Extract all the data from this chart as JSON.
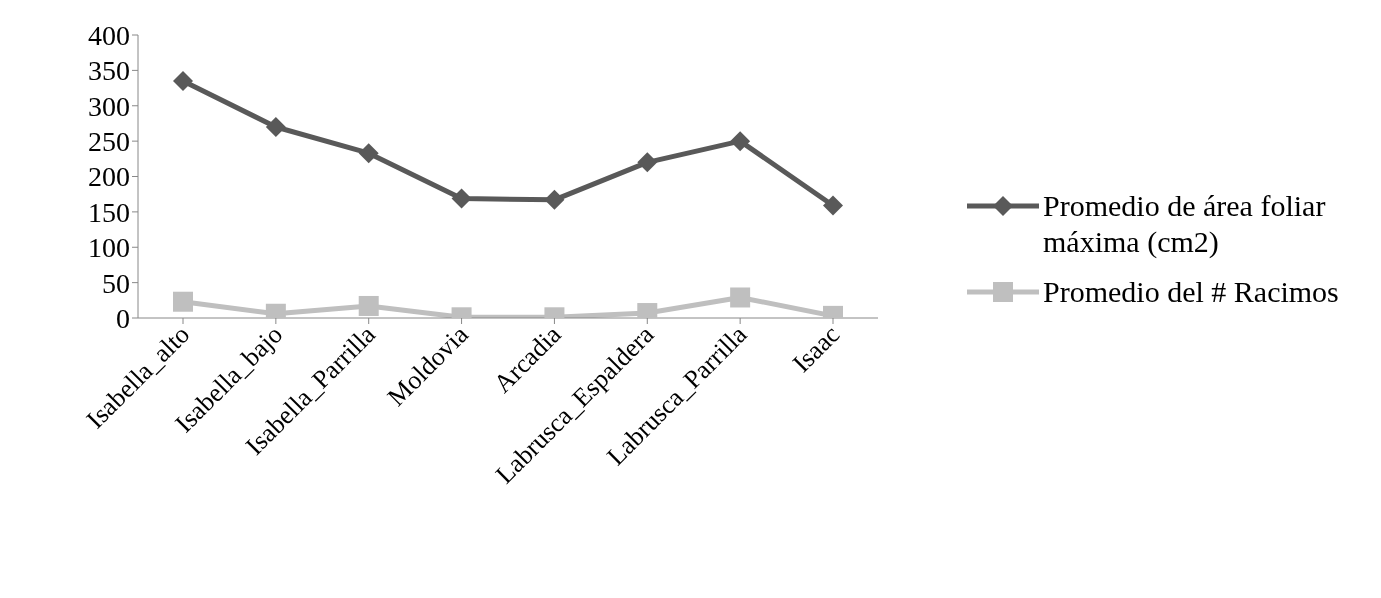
{
  "chart_data": {
    "type": "line",
    "categories": [
      "Isabella_alto",
      "Isabella_bajo",
      "Isabella_Parrilla",
      "Moldovia",
      "Arcadia",
      "Labrusca_Espaldera",
      "Labrusca_Parrilla",
      "Isaac"
    ],
    "series": [
      {
        "name": "Promedio de área foliar máxima (cm2)",
        "color": "#595959",
        "marker": "diamond",
        "values": [
          335,
          270,
          233,
          169,
          167,
          220,
          250,
          159
        ]
      },
      {
        "name": "Promedio del # Racimos",
        "color": "#bfbfbf",
        "marker": "square",
        "values": [
          23,
          6,
          17,
          1,
          1,
          7,
          29,
          3
        ]
      }
    ],
    "ylim": [
      0,
      400
    ],
    "yticks": [
      0,
      50,
      100,
      150,
      200,
      250,
      300,
      350,
      400
    ],
    "grid": false,
    "legend": "right",
    "line_style": "solid"
  }
}
